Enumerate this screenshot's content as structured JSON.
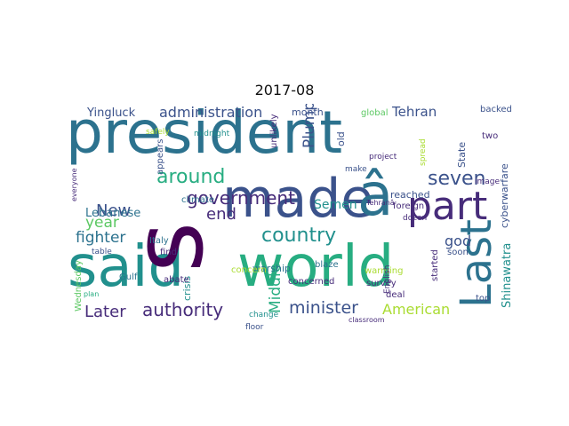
{
  "title": "2017-08",
  "words": {
    "president": "president",
    "s": "s",
    "made": "made",
    "a_hat": "â",
    "part": "part",
    "said": "said",
    "world": "world",
    "last": "Last",
    "country": "country",
    "government": "government",
    "administration": "administration",
    "around": "around",
    "seven": "seven",
    "authority": "authority",
    "minister": "minister",
    "later": "Later",
    "american": "American",
    "fighter": "fighter",
    "new": "New",
    "year": "year",
    "middle": "Middle",
    "plump": "Plump",
    "tehran": "Tehran",
    "end": "end",
    "yingluck": "Yingluck",
    "lebanese": "Lebanese",
    "semen": "Semen",
    "god": "god",
    "shinawatra": "Shinawatra",
    "cyberwarfare": "cyberwarfare",
    "warship": "warship",
    "crisis": "crisis",
    "wednesday": "Wednesday",
    "month": "month",
    "global": "global",
    "backed": "backed",
    "two": "two",
    "state": "State",
    "reached": "reached",
    "foreign": "foreign",
    "concern": "concern",
    "warming": "warming",
    "survey": "survey",
    "deal": "deal",
    "top": "top",
    "soon": "soon",
    "started": "started",
    "blaze": "blaze",
    "concerned": "concerned",
    "change": "change",
    "climate": "climate",
    "italy": "Italy",
    "gulf": "Gulf",
    "appears": "appears",
    "abate": "abate",
    "find": "find",
    "midnight": "midnight",
    "safely": "safely",
    "unlikely": "unlikely",
    "old": "old",
    "make": "make",
    "project": "project",
    "dozen": "dozen",
    "english": "English",
    "image": "image",
    "table": "table",
    "plan": "plan",
    "everyone": "everyone",
    "spread": "spread",
    "floor": "floor",
    "classroom": "classroom",
    "tehrana": "Tehranâ"
  },
  "colors": {
    "dark_purple": "#440154",
    "purple": "#472c7a",
    "indigo": "#3b528b",
    "blue": "#2c728e",
    "teal": "#21908d",
    "green": "#27ad81",
    "lightgreen": "#5cc863",
    "yellowgreen": "#aadc32",
    "yellow": "#fde725"
  }
}
